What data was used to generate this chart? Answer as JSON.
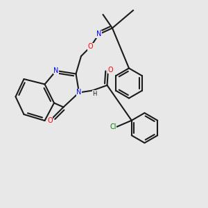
{
  "bg_color": "#e8e8e8",
  "bond_color": "#1a1a1a",
  "N_color": "#0000ff",
  "O_color": "#ff0000",
  "Cl_color": "#008000",
  "lw": 1.5,
  "atoms": {
    "N1_label": "N",
    "N2_label": "N",
    "N3_label": "N",
    "O1_label": "O",
    "O2_label": "O",
    "Cl_label": "Cl",
    "H_label": "H"
  }
}
